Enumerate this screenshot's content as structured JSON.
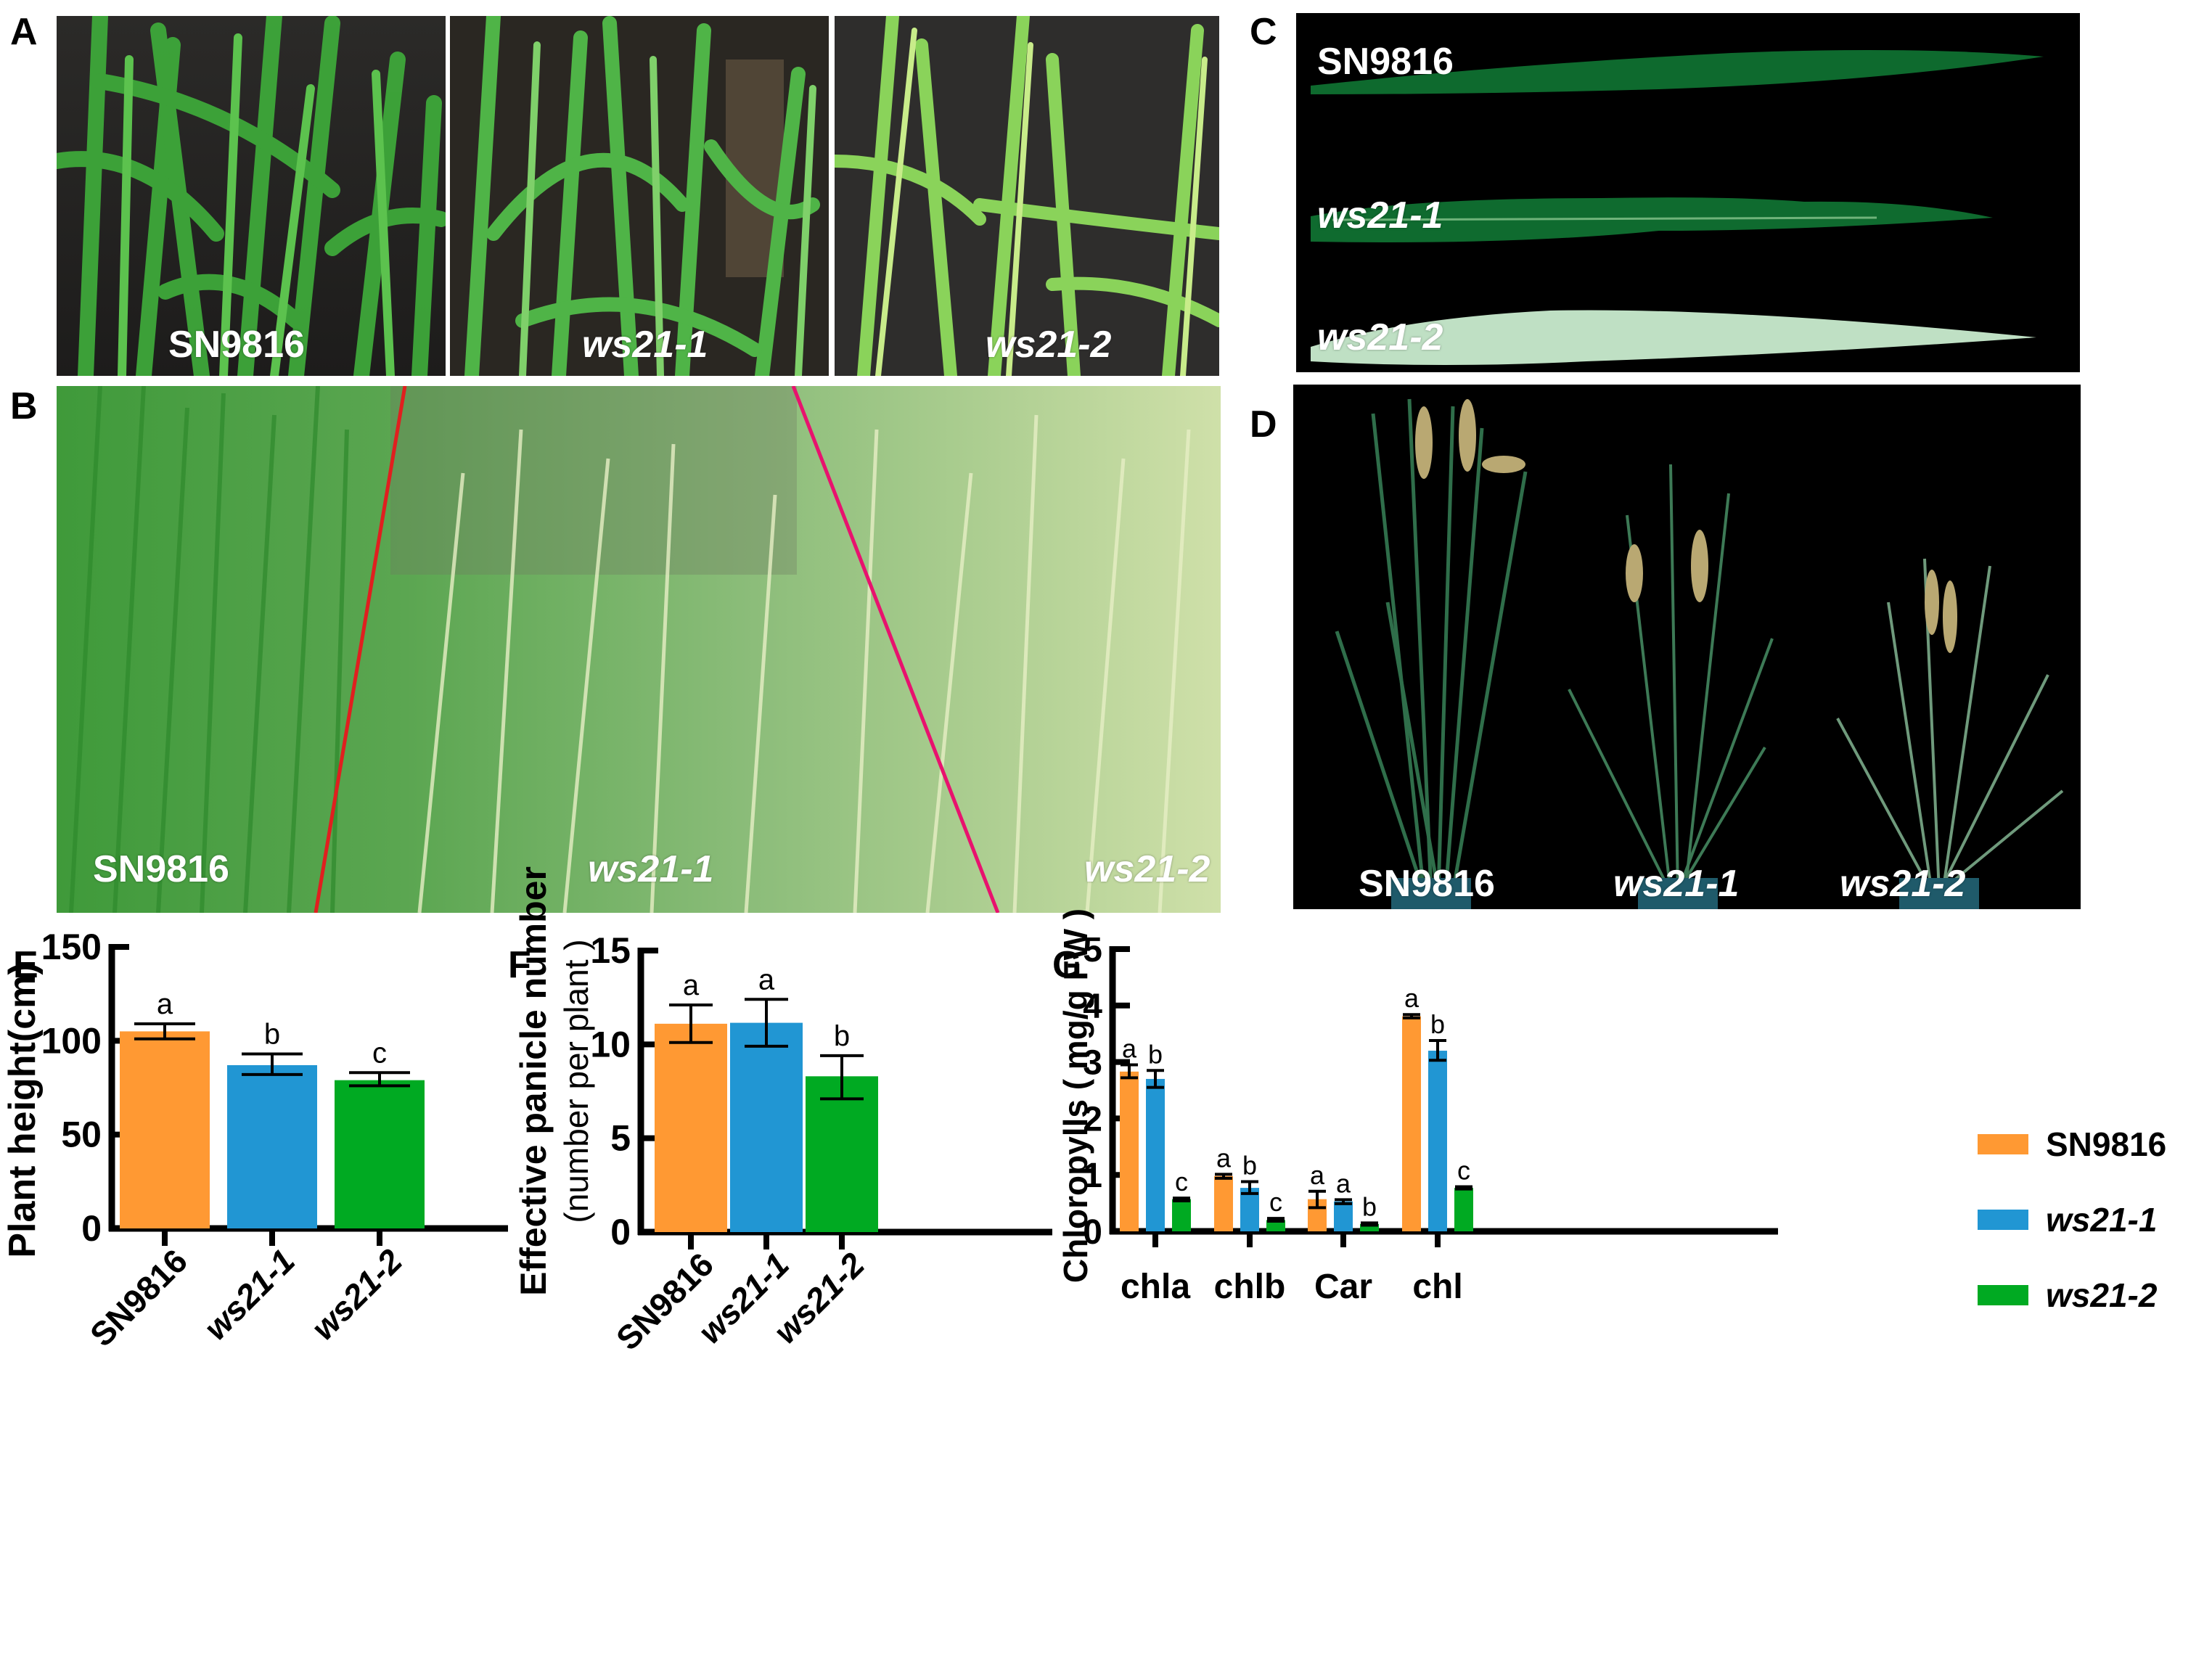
{
  "panels": {
    "A": {
      "letter": "A",
      "labels": [
        "SN9816",
        "ws21-1",
        "ws21-2"
      ]
    },
    "B": {
      "letter": "B",
      "labels": [
        "SN9816",
        "ws21-1",
        "ws21-2"
      ]
    },
    "C": {
      "letter": "C",
      "labels": [
        "SN9816",
        "ws21-1",
        "ws21-2"
      ]
    },
    "D": {
      "letter": "D",
      "labels": [
        "SN9816",
        "ws21-1",
        "ws21-2"
      ]
    },
    "E": {
      "letter": "E"
    },
    "F": {
      "letter": "F"
    },
    "G": {
      "letter": "G"
    }
  },
  "colors": {
    "SN9816": "#FF9933",
    "ws21-1": "#2196D3",
    "ws21-2": "#00AA22"
  },
  "legend": {
    "items": [
      {
        "label": "SN9816",
        "color": "#FF9933",
        "italic": false
      },
      {
        "label": "ws21-1",
        "color": "#2196D3",
        "italic": true
      },
      {
        "label": "ws21-2",
        "color": "#00AA22",
        "italic": true
      }
    ]
  },
  "chart_data": [
    {
      "id": "E",
      "type": "bar",
      "title": "",
      "xlabel": "",
      "ylabel": "Plant height(cm)",
      "ylim": [
        0,
        150
      ],
      "yticks": [
        0,
        50,
        100,
        150
      ],
      "grid": false,
      "categories": [
        "SN9816",
        "ws21-1",
        "ws21-2"
      ],
      "values": [
        105,
        87,
        79
      ],
      "error_low": [
        101,
        82,
        76
      ],
      "error_high": [
        109,
        93,
        83
      ],
      "significance": [
        "a",
        "b",
        "c"
      ],
      "colors": [
        "#FF9933",
        "#2196D3",
        "#00AA22"
      ]
    },
    {
      "id": "F",
      "type": "bar",
      "title": "",
      "xlabel": "",
      "ylabel": "Effective panicle number (number per plant)",
      "ylabel_lines": [
        "Effective panicle number",
        "(number per plant )"
      ],
      "ylim": [
        0,
        15
      ],
      "yticks": [
        0,
        5,
        10,
        15
      ],
      "grid": false,
      "categories": [
        "SN9816",
        "ws21-1",
        "ws21-2"
      ],
      "values": [
        11.1,
        11.15,
        8.3
      ],
      "error_low": [
        10.1,
        9.9,
        7.1
      ],
      "error_high": [
        12.1,
        12.4,
        9.4
      ],
      "significance": [
        "a",
        "a",
        "b"
      ],
      "colors": [
        "#FF9933",
        "#2196D3",
        "#00AA22"
      ]
    },
    {
      "id": "G",
      "type": "bar",
      "title": "",
      "xlabel": "",
      "ylabel": "Chloropylls ( mg/g FW )",
      "ylim": [
        0,
        5
      ],
      "yticks": [
        0,
        1,
        2,
        3,
        4,
        5
      ],
      "grid": false,
      "legend_position": "right",
      "categories": [
        "chla",
        "chlb",
        "Car",
        "chl"
      ],
      "series": [
        {
          "name": "SN9816",
          "color": "#FF9933",
          "values": [
            2.83,
            0.98,
            0.57,
            3.81
          ],
          "error_low": [
            2.72,
            0.94,
            0.42,
            3.78
          ],
          "error_high": [
            2.95,
            1.01,
            0.71,
            3.84
          ],
          "significance": [
            "a",
            "a",
            "a",
            "a"
          ]
        },
        {
          "name": "ws21-1",
          "color": "#2196D3",
          "values": [
            2.7,
            0.77,
            0.53,
            3.2
          ],
          "error_low": [
            2.55,
            0.67,
            0.49,
            3.03
          ],
          "error_high": [
            2.85,
            0.88,
            0.56,
            3.38
          ],
          "significance": [
            "b",
            "b",
            "a",
            "b"
          ]
        },
        {
          "name": "ws21-2",
          "color": "#00AA22",
          "values": [
            0.57,
            0.2,
            0.13,
            0.77
          ],
          "error_low": [
            0.54,
            0.18,
            0.11,
            0.75
          ],
          "error_high": [
            0.59,
            0.23,
            0.15,
            0.79
          ],
          "significance": [
            "c",
            "c",
            "b",
            "c"
          ]
        }
      ]
    }
  ]
}
